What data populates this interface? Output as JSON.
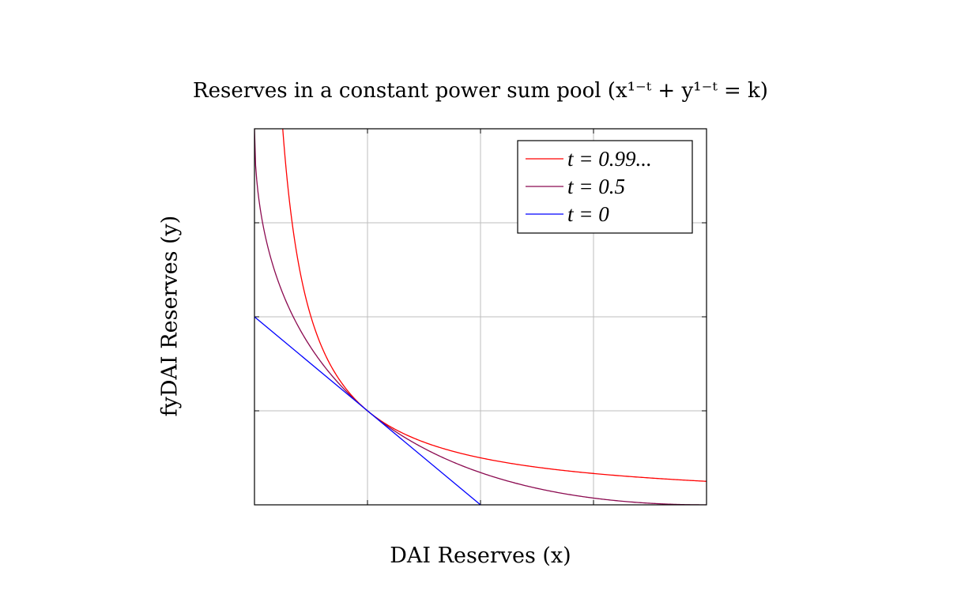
{
  "chart_data": {
    "type": "line",
    "title": "Reserves in a constant power sum pool (x¹⁻ᵗ + y¹⁻ᵗ = k)",
    "xlabel": "DAI Reserves (x)",
    "ylabel": "fyDAI Reserves (y)",
    "xlim": [
      0,
      4
    ],
    "ylim": [
      0,
      4
    ],
    "grid": true,
    "show_tick_labels": false,
    "legend_position": "top-right",
    "series": [
      {
        "name": "t = 0.99...",
        "color": "#ff0000",
        "kind": "hyperbola",
        "equation": "x*y = 1"
      },
      {
        "name": "t = 0.5",
        "color": "#8b0a50",
        "kind": "power-sum",
        "equation": "sqrt(x) + sqrt(y) = 2"
      },
      {
        "name": "t = 0",
        "color": "#0000ff",
        "kind": "linear",
        "equation": "x + y = 2"
      }
    ]
  }
}
